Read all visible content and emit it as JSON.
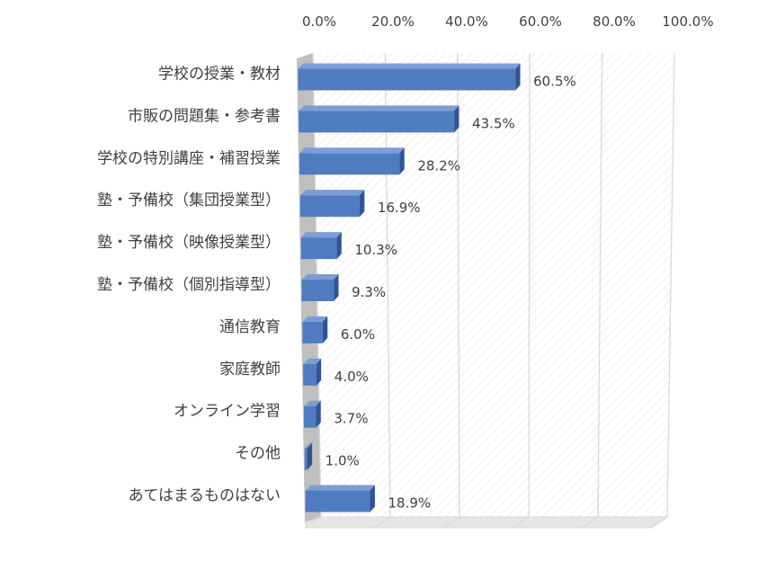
{
  "chart_data": {
    "type": "bar",
    "orientation": "horizontal",
    "style": "3d",
    "categories": [
      "学校の授業・教材",
      "市販の問題集・参考書",
      "学校の特別講座・補習授業",
      "塾・予備校（集団授業型）",
      "塾・予備校（映像授業型）",
      "塾・予備校（個別指導型）",
      "通信教育",
      "家庭教師",
      "オンライン学習",
      "その他",
      "あてはまるものはない"
    ],
    "values": [
      60.5,
      43.5,
      28.2,
      16.9,
      10.3,
      9.3,
      6.0,
      4.0,
      3.7,
      1.0,
      18.9
    ],
    "value_labels": [
      "60.5%",
      "43.5%",
      "28.2%",
      "16.9%",
      "10.3%",
      "9.3%",
      "6.0%",
      "4.0%",
      "3.7%",
      "1.0%",
      "18.9%"
    ],
    "x_ticks": [
      0,
      20,
      40,
      60,
      80,
      100
    ],
    "x_tick_labels": [
      "0.0%",
      "20.0%",
      "40.0%",
      "60.0%",
      "80.0%",
      "100.0%"
    ],
    "xlim": [
      0,
      100
    ],
    "axis_position": "top",
    "grid": true,
    "legend": "none",
    "colors": {
      "bar_front": "#4F7CC1",
      "bar_top": "#7C9DD4",
      "bar_side": "#2F5597",
      "grid": "#D9D9D9",
      "floor": "#BFBFBF",
      "text": "#404040"
    }
  }
}
